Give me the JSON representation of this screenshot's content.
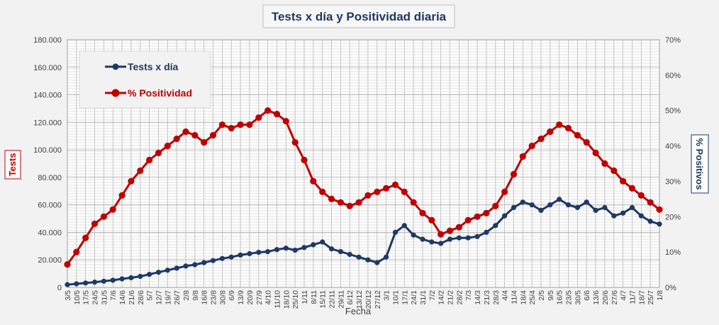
{
  "chart_data": {
    "type": "line",
    "title": "Tests x día y Positividad  diaria",
    "xlabel": "Fecha",
    "ylabel": "Tests",
    "y2label": "% Positivos",
    "ylim": [
      0,
      180000
    ],
    "y2lim": [
      0,
      0.7
    ],
    "y_ticks": [
      "0",
      "20.000",
      "40.000",
      "60.000",
      "80.000",
      "100.000",
      "120.000",
      "140.000",
      "160.000",
      "180.000"
    ],
    "y2_ticks": [
      "0%",
      "10%",
      "20%",
      "30%",
      "40%",
      "50%",
      "60%",
      "70%"
    ],
    "grid": true,
    "legend_position": "top-left",
    "categories": [
      "3/5",
      "10/5",
      "17/5",
      "24/5",
      "31/5",
      "7/6",
      "14/6",
      "21/6",
      "28/6",
      "5/7",
      "12/7",
      "19/7",
      "26/7",
      "2/8",
      "9/8",
      "16/8",
      "23/8",
      "30/8",
      "6/9",
      "13/9",
      "20/9",
      "27/9",
      "4/10",
      "11/10",
      "18/10",
      "25/10",
      "1/11",
      "8/11",
      "15/11",
      "22/11",
      "29/11",
      "6/12",
      "13/12",
      "20/12",
      "27/12",
      "3/1",
      "10/1",
      "17/1",
      "24/1",
      "31/1",
      "7/2",
      "14/2",
      "21/2",
      "28/2",
      "7/3",
      "14/3",
      "21/3",
      "28/3",
      "4/4",
      "11/4",
      "18/4",
      "25/4",
      "2/5",
      "9/5",
      "16/5",
      "23/5",
      "30/5",
      "6/6",
      "13/6",
      "20/6",
      "27/6",
      "4/7",
      "11/7",
      "18/7",
      "25/7",
      "1/8"
    ],
    "series": [
      {
        "name": "Tests x día",
        "axis": "left",
        "color": "#1f3864",
        "values": [
          2000,
          2600,
          3200,
          3800,
          4500,
          5200,
          6200,
          7000,
          8000,
          9500,
          11000,
          12500,
          14000,
          15500,
          16500,
          18000,
          19500,
          21000,
          22000,
          23500,
          24500,
          25500,
          26000,
          27500,
          28500,
          27000,
          29000,
          31000,
          33000,
          28000,
          26000,
          24000,
          22000,
          20000,
          18000,
          22000,
          40000,
          45000,
          38000,
          35000,
          33000,
          32000,
          35000,
          36000,
          36000,
          37000,
          40000,
          45000,
          52000,
          58000,
          62000,
          60000,
          56000,
          60000,
          64000,
          60000,
          58000,
          62000,
          56000,
          58000,
          52000,
          54000,
          58000,
          52000,
          48000,
          46000
        ]
      },
      {
        "name": "% Positividad",
        "axis": "right",
        "color": "#c00000",
        "values": [
          0.065,
          0.1,
          0.14,
          0.18,
          0.2,
          0.22,
          0.26,
          0.3,
          0.33,
          0.36,
          0.38,
          0.4,
          0.42,
          0.44,
          0.43,
          0.41,
          0.43,
          0.46,
          0.45,
          0.46,
          0.46,
          0.48,
          0.5,
          0.49,
          0.47,
          0.41,
          0.36,
          0.3,
          0.27,
          0.25,
          0.24,
          0.23,
          0.24,
          0.26,
          0.27,
          0.28,
          0.29,
          0.27,
          0.24,
          0.21,
          0.19,
          0.15,
          0.16,
          0.17,
          0.19,
          0.2,
          0.21,
          0.23,
          0.27,
          0.32,
          0.37,
          0.4,
          0.42,
          0.44,
          0.46,
          0.45,
          0.43,
          0.41,
          0.38,
          0.35,
          0.33,
          0.3,
          0.28,
          0.26,
          0.24,
          0.22
        ]
      }
    ]
  }
}
